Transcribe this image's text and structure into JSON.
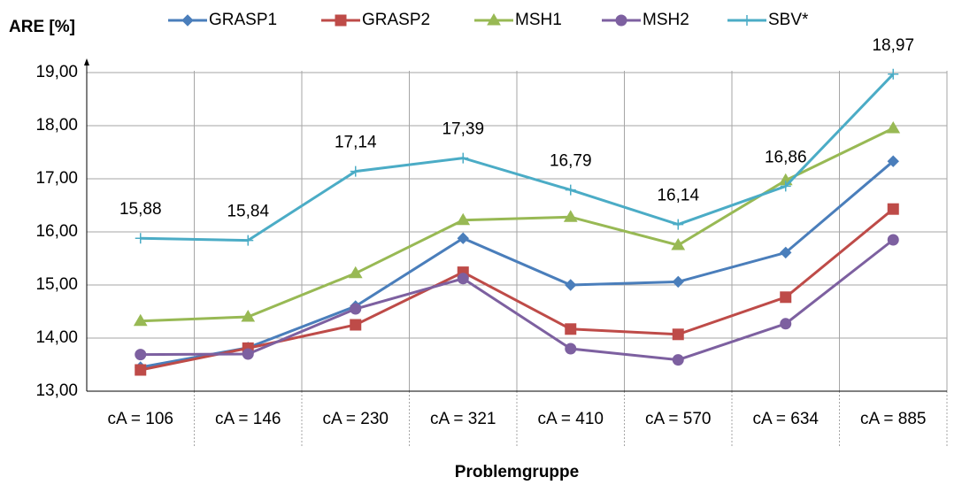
{
  "chart_data": {
    "type": "line",
    "y_label": "ARE [%]",
    "x_label": "Problemgruppe",
    "categories": [
      "cA = 106",
      "cA = 146",
      "cA = 230",
      "cA = 321",
      "cA = 410",
      "cA = 570",
      "cA = 634",
      "cA = 885"
    ],
    "series": [
      {
        "name": "GRASP1",
        "color": "#4a7ebb",
        "marker": "diamond",
        "values": [
          13.45,
          13.82,
          14.6,
          15.88,
          15.0,
          15.06,
          15.61,
          17.33
        ]
      },
      {
        "name": "GRASP2",
        "color": "#be4b48",
        "marker": "square",
        "values": [
          13.4,
          13.81,
          14.25,
          15.24,
          14.17,
          14.07,
          14.77,
          16.43
        ]
      },
      {
        "name": "MSH1",
        "color": "#98b954",
        "marker": "triangle",
        "values": [
          14.32,
          14.4,
          15.22,
          16.22,
          16.28,
          15.75,
          16.97,
          17.95
        ]
      },
      {
        "name": "MSH2",
        "color": "#7d60a0",
        "marker": "circle",
        "values": [
          13.69,
          13.7,
          14.55,
          15.12,
          13.8,
          13.59,
          14.27,
          15.85
        ]
      },
      {
        "name": "SBV*",
        "color": "#4bacc6",
        "marker": "plus",
        "values": [
          15.88,
          15.84,
          17.14,
          17.39,
          16.79,
          16.14,
          16.86,
          18.97
        ],
        "value_labels": [
          "15,88",
          "15,84",
          "17,14",
          "17,39",
          "16,79",
          "16,14",
          "16,86",
          "18,97"
        ]
      }
    ],
    "ylim": [
      13,
      19.2
    ],
    "yticks": [
      {
        "value": 13,
        "label": "13,00"
      },
      {
        "value": 14,
        "label": "14,00"
      },
      {
        "value": 15,
        "label": "15,00"
      },
      {
        "value": 16,
        "label": "16,00"
      },
      {
        "value": 17,
        "label": "17,00"
      },
      {
        "value": 18,
        "label": "18,00"
      },
      {
        "value": 19,
        "label": "19,00"
      }
    ],
    "grid": true,
    "legend": "top"
  }
}
